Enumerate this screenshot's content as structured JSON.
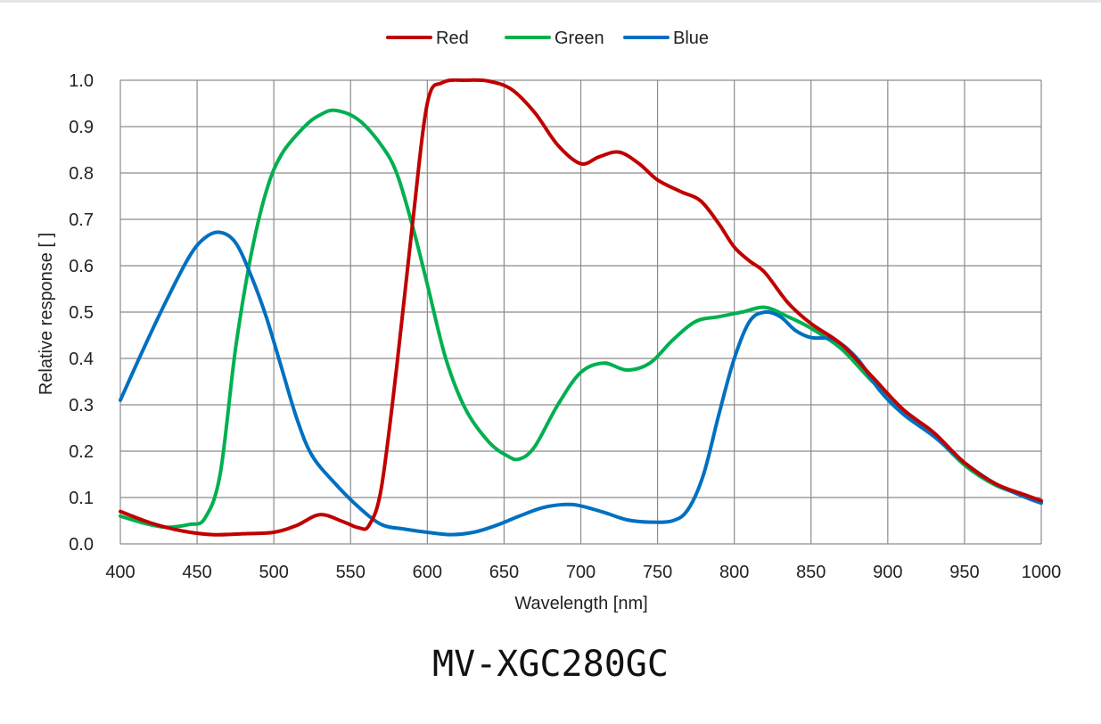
{
  "caption": "MV-XGC280GC",
  "chart_data": {
    "type": "line",
    "title": "",
    "xlabel": "Wavelength [nm]",
    "ylabel": "Relative response [ ]",
    "xlim": [
      400,
      1000
    ],
    "ylim": [
      0.0,
      1.0
    ],
    "xticks": [
      "400",
      "450",
      "500",
      "550",
      "600",
      "650",
      "700",
      "750",
      "800",
      "850",
      "900",
      "950",
      "1000"
    ],
    "yticks": [
      "0.0",
      "0.1",
      "0.2",
      "0.3",
      "0.4",
      "0.5",
      "0.6",
      "0.7",
      "0.8",
      "0.9",
      "1.0"
    ],
    "grid": true,
    "legend_position": "top-center",
    "series": [
      {
        "name": "Red",
        "color": "#c00000",
        "points": [
          [
            400,
            0.07
          ],
          [
            420,
            0.045
          ],
          [
            440,
            0.028
          ],
          [
            460,
            0.02
          ],
          [
            480,
            0.022
          ],
          [
            500,
            0.025
          ],
          [
            515,
            0.04
          ],
          [
            530,
            0.063
          ],
          [
            545,
            0.048
          ],
          [
            555,
            0.035
          ],
          [
            562,
            0.04
          ],
          [
            570,
            0.12
          ],
          [
            580,
            0.38
          ],
          [
            590,
            0.68
          ],
          [
            600,
            0.95
          ],
          [
            610,
            0.995
          ],
          [
            625,
            1.0
          ],
          [
            640,
            0.998
          ],
          [
            655,
            0.98
          ],
          [
            670,
            0.93
          ],
          [
            685,
            0.86
          ],
          [
            700,
            0.82
          ],
          [
            712,
            0.835
          ],
          [
            725,
            0.845
          ],
          [
            738,
            0.82
          ],
          [
            750,
            0.785
          ],
          [
            765,
            0.76
          ],
          [
            778,
            0.74
          ],
          [
            790,
            0.69
          ],
          [
            800,
            0.64
          ],
          [
            810,
            0.61
          ],
          [
            820,
            0.585
          ],
          [
            835,
            0.52
          ],
          [
            850,
            0.475
          ],
          [
            870,
            0.43
          ],
          [
            890,
            0.36
          ],
          [
            910,
            0.29
          ],
          [
            930,
            0.24
          ],
          [
            950,
            0.175
          ],
          [
            970,
            0.13
          ],
          [
            990,
            0.105
          ],
          [
            1000,
            0.093
          ]
        ]
      },
      {
        "name": "Green",
        "color": "#00b050",
        "points": [
          [
            400,
            0.06
          ],
          [
            415,
            0.045
          ],
          [
            430,
            0.036
          ],
          [
            445,
            0.042
          ],
          [
            455,
            0.055
          ],
          [
            465,
            0.15
          ],
          [
            475,
            0.42
          ],
          [
            485,
            0.62
          ],
          [
            495,
            0.76
          ],
          [
            505,
            0.84
          ],
          [
            520,
            0.9
          ],
          [
            530,
            0.925
          ],
          [
            540,
            0.935
          ],
          [
            555,
            0.915
          ],
          [
            570,
            0.86
          ],
          [
            580,
            0.8
          ],
          [
            590,
            0.69
          ],
          [
            600,
            0.56
          ],
          [
            612,
            0.4
          ],
          [
            625,
            0.29
          ],
          [
            640,
            0.22
          ],
          [
            652,
            0.19
          ],
          [
            660,
            0.183
          ],
          [
            670,
            0.21
          ],
          [
            685,
            0.3
          ],
          [
            700,
            0.37
          ],
          [
            715,
            0.39
          ],
          [
            730,
            0.375
          ],
          [
            745,
            0.39
          ],
          [
            760,
            0.44
          ],
          [
            775,
            0.48
          ],
          [
            790,
            0.49
          ],
          [
            805,
            0.5
          ],
          [
            820,
            0.51
          ],
          [
            835,
            0.49
          ],
          [
            850,
            0.465
          ],
          [
            870,
            0.42
          ],
          [
            890,
            0.35
          ],
          [
            910,
            0.29
          ],
          [
            930,
            0.235
          ],
          [
            950,
            0.17
          ],
          [
            970,
            0.127
          ],
          [
            990,
            0.103
          ],
          [
            1000,
            0.09
          ]
        ]
      },
      {
        "name": "Blue",
        "color": "#0070c0",
        "points": [
          [
            400,
            0.31
          ],
          [
            415,
            0.42
          ],
          [
            430,
            0.525
          ],
          [
            445,
            0.62
          ],
          [
            455,
            0.66
          ],
          [
            465,
            0.672
          ],
          [
            475,
            0.65
          ],
          [
            485,
            0.58
          ],
          [
            495,
            0.49
          ],
          [
            505,
            0.38
          ],
          [
            515,
            0.27
          ],
          [
            525,
            0.19
          ],
          [
            540,
            0.13
          ],
          [
            555,
            0.08
          ],
          [
            570,
            0.042
          ],
          [
            585,
            0.032
          ],
          [
            600,
            0.025
          ],
          [
            615,
            0.02
          ],
          [
            630,
            0.025
          ],
          [
            645,
            0.04
          ],
          [
            660,
            0.06
          ],
          [
            675,
            0.078
          ],
          [
            690,
            0.085
          ],
          [
            700,
            0.082
          ],
          [
            715,
            0.068
          ],
          [
            730,
            0.052
          ],
          [
            745,
            0.047
          ],
          [
            760,
            0.05
          ],
          [
            770,
            0.075
          ],
          [
            780,
            0.15
          ],
          [
            790,
            0.28
          ],
          [
            800,
            0.4
          ],
          [
            810,
            0.48
          ],
          [
            820,
            0.5
          ],
          [
            830,
            0.49
          ],
          [
            840,
            0.46
          ],
          [
            850,
            0.445
          ],
          [
            865,
            0.44
          ],
          [
            880,
            0.4
          ],
          [
            895,
            0.33
          ],
          [
            910,
            0.28
          ],
          [
            930,
            0.232
          ],
          [
            950,
            0.175
          ],
          [
            970,
            0.13
          ],
          [
            990,
            0.1
          ],
          [
            1000,
            0.088
          ]
        ]
      }
    ]
  }
}
